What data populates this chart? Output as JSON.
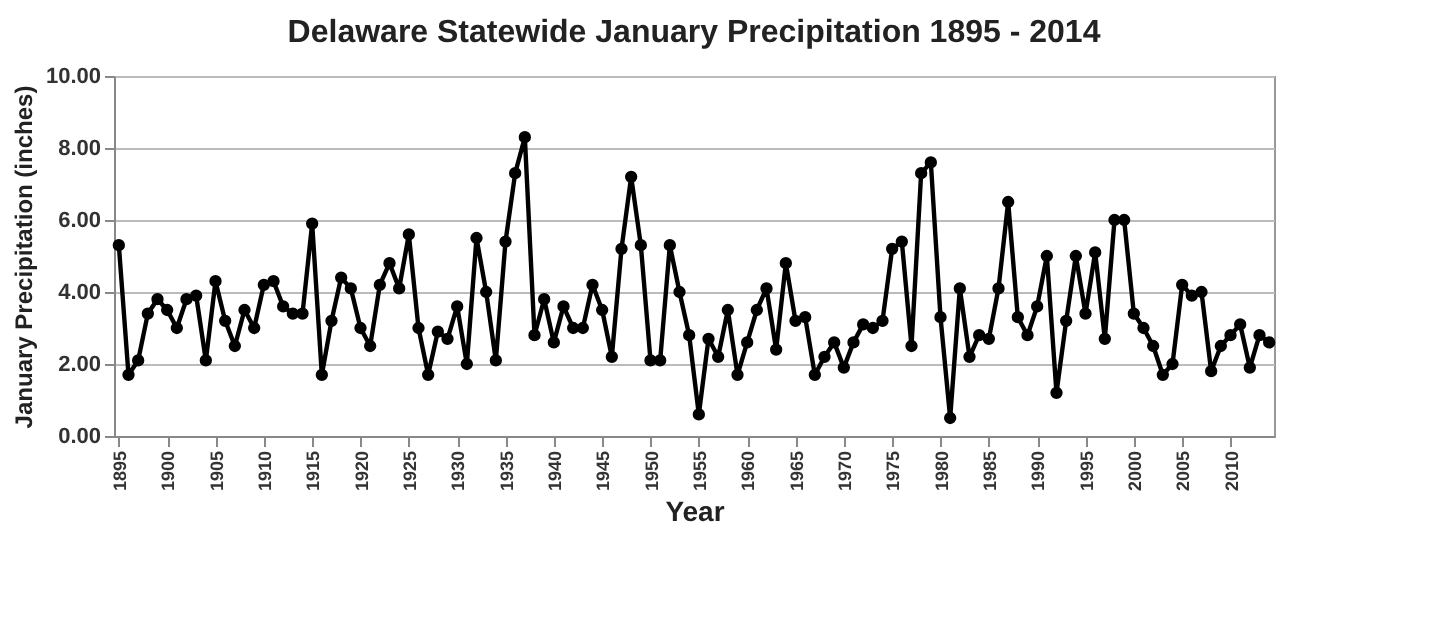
{
  "chart_data": {
    "type": "line",
    "title": "Delaware Statewide January Precipitation 1895 - 2014",
    "xlabel": "Year",
    "ylabel": "January Precipitation (inches)",
    "x": [
      1895,
      1896,
      1897,
      1898,
      1899,
      1900,
      1901,
      1902,
      1903,
      1904,
      1905,
      1906,
      1907,
      1908,
      1909,
      1910,
      1911,
      1912,
      1913,
      1914,
      1915,
      1916,
      1917,
      1918,
      1919,
      1920,
      1921,
      1922,
      1923,
      1924,
      1925,
      1926,
      1927,
      1928,
      1929,
      1930,
      1931,
      1932,
      1933,
      1934,
      1935,
      1936,
      1937,
      1938,
      1939,
      1940,
      1941,
      1942,
      1943,
      1944,
      1945,
      1946,
      1947,
      1948,
      1949,
      1950,
      1951,
      1952,
      1953,
      1954,
      1955,
      1956,
      1957,
      1958,
      1959,
      1960,
      1961,
      1962,
      1963,
      1964,
      1965,
      1966,
      1967,
      1968,
      1969,
      1970,
      1971,
      1972,
      1973,
      1974,
      1975,
      1976,
      1977,
      1978,
      1979,
      1980,
      1981,
      1982,
      1983,
      1984,
      1985,
      1986,
      1987,
      1988,
      1989,
      1990,
      1991,
      1992,
      1993,
      1994,
      1995,
      1996,
      1997,
      1998,
      1999,
      2000,
      2001,
      2002,
      2003,
      2004,
      2005,
      2006,
      2007,
      2008,
      2009,
      2010,
      2011,
      2012,
      2013,
      2014
    ],
    "series": [
      {
        "color": "#000000",
        "values": [
          5.3,
          1.7,
          2.1,
          3.4,
          3.8,
          3.5,
          3.0,
          3.8,
          3.9,
          2.1,
          4.3,
          3.2,
          2.5,
          3.5,
          3.0,
          4.2,
          4.3,
          3.6,
          3.4,
          3.4,
          5.9,
          1.7,
          3.2,
          4.4,
          4.1,
          3.0,
          2.5,
          4.2,
          4.8,
          4.1,
          5.6,
          3.0,
          1.7,
          2.9,
          2.7,
          3.6,
          2.0,
          5.5,
          4.0,
          2.1,
          5.4,
          7.3,
          8.3,
          2.8,
          3.8,
          2.6,
          3.6,
          3.0,
          3.0,
          4.2,
          3.5,
          2.2,
          5.2,
          7.2,
          5.3,
          2.1,
          2.1,
          5.3,
          4.0,
          2.8,
          0.6,
          2.7,
          2.2,
          3.5,
          1.7,
          2.6,
          3.5,
          4.1,
          2.4,
          4.8,
          3.2,
          3.3,
          1.7,
          2.2,
          2.6,
          1.9,
          2.6,
          3.1,
          3.0,
          3.2,
          5.2,
          5.4,
          2.5,
          7.3,
          7.6,
          3.3,
          0.5,
          4.1,
          2.2,
          2.8,
          2.7,
          4.1,
          6.5,
          3.3,
          2.8,
          3.6,
          5.0,
          1.2,
          3.2,
          5.0,
          3.4,
          5.1,
          2.7,
          6.0,
          6.0,
          3.4,
          3.0,
          2.5,
          1.7,
          2.0,
          4.2,
          3.9,
          4.0,
          1.8,
          2.5,
          2.8,
          3.1,
          1.9,
          2.8,
          2.6
        ]
      }
    ],
    "xlim": [
      1894.5,
      2014.5
    ],
    "xticks": [
      1895,
      1900,
      1905,
      1910,
      1915,
      1920,
      1925,
      1930,
      1935,
      1940,
      1945,
      1950,
      1955,
      1960,
      1965,
      1970,
      1975,
      1980,
      1985,
      1990,
      1995,
      2000,
      2005,
      2010
    ],
    "ylim": [
      0,
      10
    ],
    "yticks": [
      {
        "value": 0,
        "label": "0.00"
      },
      {
        "value": 2,
        "label": "2.00"
      },
      {
        "value": 4,
        "label": "4.00"
      },
      {
        "value": 6,
        "label": "6.00"
      },
      {
        "value": 8,
        "label": "8.00"
      },
      {
        "value": 10,
        "label": "10.00"
      }
    ],
    "grid": "y",
    "marker": "circle",
    "line_style": "solid"
  }
}
